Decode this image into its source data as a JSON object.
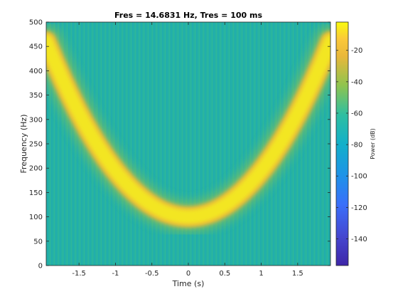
{
  "chart_data": {
    "type": "heatmap",
    "title": "Fres = 14.6831 Hz, Tres = 100 ms",
    "xlabel": "Time (s)",
    "ylabel": "Frequency (Hz)",
    "xlim": [
      -1.95,
      1.95
    ],
    "ylim": [
      0,
      500
    ],
    "xticks": [
      -1.5,
      -1,
      -0.5,
      0,
      0.5,
      1,
      1.5
    ],
    "xtick_labels": [
      "-1.5",
      "-1",
      "-0.5",
      "0",
      "0.5",
      "1",
      "1.5"
    ],
    "yticks": [
      0,
      50,
      100,
      150,
      200,
      250,
      300,
      350,
      400,
      450,
      500
    ],
    "ytick_labels": [
      "0",
      "50",
      "100",
      "150",
      "200",
      "250",
      "300",
      "350",
      "400",
      "450",
      "500"
    ],
    "colormap": "parula",
    "colorbar": {
      "label": "Power (dB)",
      "range": [
        -157,
        -2
      ],
      "ticks": [
        -140,
        -120,
        -100,
        -80,
        -60,
        -40,
        -20
      ],
      "tick_labels": [
        "-140",
        "-120",
        "-100",
        "-80",
        "-60",
        "-40",
        "-20"
      ]
    },
    "ridge": {
      "description": "quadratic chirp",
      "times": [
        -1.95,
        -1.5,
        -1.0,
        -0.5,
        0.0,
        0.5,
        1.0,
        1.5,
        1.95
      ],
      "frequencies": [
        460,
        340,
        225,
        140,
        100,
        140,
        225,
        340,
        460
      ],
      "peak_power_db": -2
    },
    "background_power_db": -75
  }
}
